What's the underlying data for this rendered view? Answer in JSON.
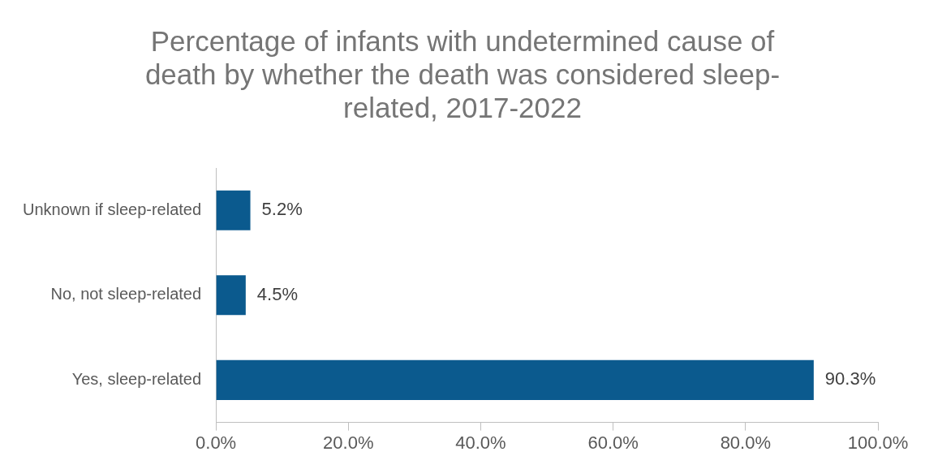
{
  "chart_data": {
    "type": "bar",
    "orientation": "horizontal",
    "title": "Percentage of infants with undetermined cause of death by whether the death was considered sleep-related, 2017-2022",
    "categories": [
      "Unknown if sleep-related",
      "No, not sleep-related",
      "Yes, sleep-related"
    ],
    "values": [
      5.2,
      4.5,
      90.3
    ],
    "color": "#0b5a8e",
    "value_labels": [
      "5.2%",
      "4.5%",
      "90.3%"
    ],
    "xlim": [
      0,
      100
    ],
    "xticks": [
      {
        "value": 0,
        "label": "0.0%"
      },
      {
        "value": 20,
        "label": "20.0%"
      },
      {
        "value": 40,
        "label": "40.0%"
      },
      {
        "value": 60,
        "label": "60.0%"
      },
      {
        "value": 80,
        "label": "80.0%"
      },
      {
        "value": 100,
        "label": "100.0%"
      }
    ],
    "grid": false,
    "legend": false
  }
}
